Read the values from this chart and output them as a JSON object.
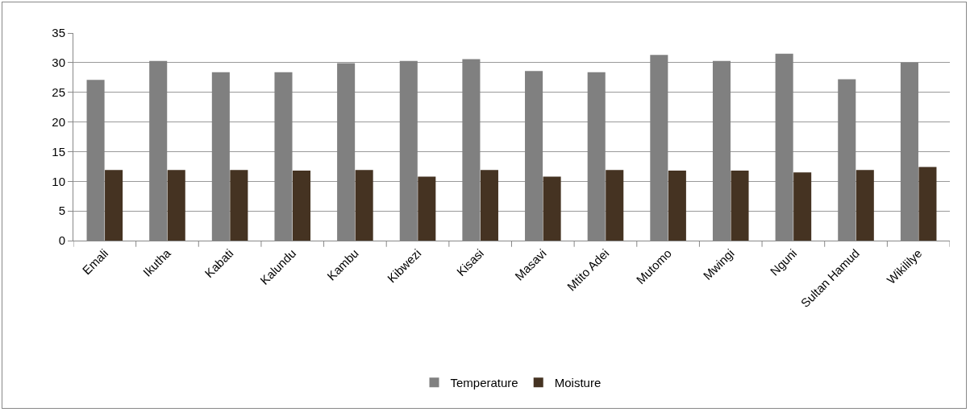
{
  "chart_data": {
    "type": "bar",
    "categories": [
      "Emali",
      "Ikutha",
      "Kabati",
      "Kalundu",
      "Kambu",
      "Kibwezi",
      "Kisasi",
      "Masavi",
      "Mtito Adei",
      "Mutomo",
      "Mwingi",
      "Nguni",
      "Sultan Hamud",
      "Wikililye"
    ],
    "series": [
      {
        "name": "Temperature",
        "color": "#808080",
        "values": [
          27.1,
          30.3,
          28.4,
          28.4,
          29.9,
          30.3,
          30.6,
          28.6,
          28.4,
          31.3,
          30.3,
          31.5,
          27.2,
          30.0
        ]
      },
      {
        "name": "Moisture",
        "color": "#453322",
        "values": [
          11.9,
          11.9,
          11.9,
          11.8,
          11.9,
          10.8,
          11.9,
          10.8,
          11.9,
          11.8,
          11.8,
          11.5,
          11.9,
          12.4
        ]
      }
    ],
    "ylim": [
      0,
      35
    ],
    "yticks": [
      0,
      5,
      10,
      15,
      20,
      25,
      30,
      35
    ],
    "grid": "y",
    "legend": "bottom"
  }
}
